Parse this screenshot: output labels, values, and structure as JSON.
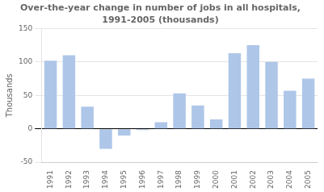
{
  "chart_data": {
    "type": "bar",
    "title": "Over-the-year change in number of jobs in all hospitals,",
    "subtitle": "1991-2005 (thousands)",
    "y_label": "Thousands",
    "categories": [
      "1991",
      "1992",
      "1993",
      "1994",
      "1995",
      "1996",
      "1997",
      "1998",
      "1999",
      "2000",
      "2001",
      "2002",
      "2003",
      "2004",
      "2005"
    ],
    "values": [
      102,
      110,
      33,
      -30,
      -10,
      -2,
      10,
      53,
      35,
      14,
      113,
      125,
      100,
      57,
      75
    ],
    "color": "#aec6e8",
    "ylim": [
      -50,
      150
    ],
    "yticks": [
      -50,
      0,
      50,
      100,
      150
    ],
    "grid": true
  }
}
